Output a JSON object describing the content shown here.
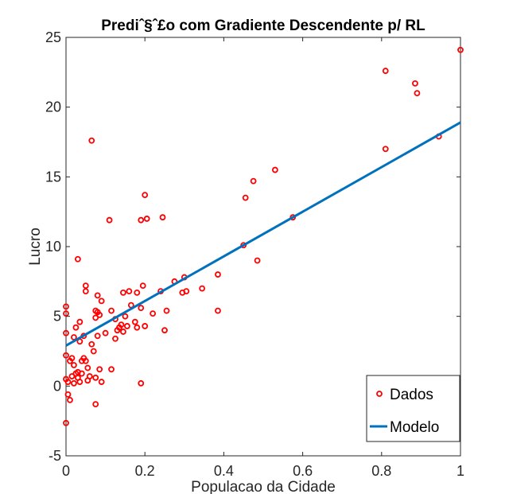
{
  "chart_data": {
    "type": "scatter",
    "title": "Prediˆ§ˆ£o com Gradiente Descendente p/ RL",
    "xlabel": "Populacao da Cidade",
    "ylabel": "Lucro",
    "xlim": [
      0,
      1
    ],
    "ylim": [
      -5,
      25
    ],
    "xticks": [
      "0",
      "0.2",
      "0.4",
      "0.6",
      "0.8",
      "1"
    ],
    "yticks": [
      "-5",
      "0",
      "5",
      "10",
      "15",
      "20",
      "25"
    ],
    "grid": false,
    "legend_position": "bottom-right",
    "series": [
      {
        "name": "Dados",
        "kind": "markers",
        "color": "#ff0000",
        "points": [
          [
            0.0,
            -2.65
          ],
          [
            0.0,
            0.5
          ],
          [
            0.0,
            2.2
          ],
          [
            0.0,
            3.8
          ],
          [
            0.0,
            5.2
          ],
          [
            0.0,
            5.7
          ],
          [
            0.005,
            0.3
          ],
          [
            0.005,
            -0.6
          ],
          [
            0.01,
            -1.0
          ],
          [
            0.01,
            1.8
          ],
          [
            0.015,
            2.0
          ],
          [
            0.015,
            0.7
          ],
          [
            0.02,
            3.5
          ],
          [
            0.02,
            1.5
          ],
          [
            0.02,
            0.2
          ],
          [
            0.025,
            0.9
          ],
          [
            0.025,
            4.2
          ],
          [
            0.03,
            9.1
          ],
          [
            0.03,
            0.6
          ],
          [
            0.03,
            1.0
          ],
          [
            0.035,
            3.2
          ],
          [
            0.035,
            4.6
          ],
          [
            0.035,
            0.3
          ],
          [
            0.04,
            1.8
          ],
          [
            0.04,
            0.9
          ],
          [
            0.045,
            2.0
          ],
          [
            0.045,
            3.6
          ],
          [
            0.05,
            1.8
          ],
          [
            0.05,
            7.2
          ],
          [
            0.05,
            6.8
          ],
          [
            0.055,
            1.3
          ],
          [
            0.055,
            0.4
          ],
          [
            0.06,
            0.7
          ],
          [
            0.065,
            17.6
          ],
          [
            0.065,
            3.0
          ],
          [
            0.07,
            2.5
          ],
          [
            0.075,
            4.9
          ],
          [
            0.075,
            5.4
          ],
          [
            0.075,
            0.6
          ],
          [
            0.075,
            -1.3
          ],
          [
            0.08,
            5.3
          ],
          [
            0.08,
            3.6
          ],
          [
            0.08,
            6.5
          ],
          [
            0.085,
            5.1
          ],
          [
            0.085,
            1.2
          ],
          [
            0.09,
            6.1
          ],
          [
            0.09,
            0.3
          ],
          [
            0.1,
            3.8
          ],
          [
            0.11,
            11.9
          ],
          [
            0.115,
            1.2
          ],
          [
            0.115,
            5.4
          ],
          [
            0.125,
            3.4
          ],
          [
            0.125,
            4.8
          ],
          [
            0.13,
            4.0
          ],
          [
            0.135,
            4.2
          ],
          [
            0.14,
            4.4
          ],
          [
            0.145,
            6.7
          ],
          [
            0.145,
            3.9
          ],
          [
            0.15,
            5.0
          ],
          [
            0.155,
            4.3
          ],
          [
            0.16,
            6.8
          ],
          [
            0.165,
            5.8
          ],
          [
            0.175,
            4.6
          ],
          [
            0.18,
            6.7
          ],
          [
            0.18,
            4.2
          ],
          [
            0.19,
            11.9
          ],
          [
            0.19,
            0.2
          ],
          [
            0.19,
            5.6
          ],
          [
            0.195,
            7.2
          ],
          [
            0.2,
            13.7
          ],
          [
            0.2,
            4.3
          ],
          [
            0.205,
            12.0
          ],
          [
            0.22,
            5.2
          ],
          [
            0.24,
            6.8
          ],
          [
            0.245,
            12.1
          ],
          [
            0.25,
            4.0
          ],
          [
            0.255,
            5.4
          ],
          [
            0.275,
            7.5
          ],
          [
            0.295,
            6.7
          ],
          [
            0.3,
            7.8
          ],
          [
            0.305,
            6.8
          ],
          [
            0.345,
            7.0
          ],
          [
            0.385,
            8.0
          ],
          [
            0.385,
            5.4
          ],
          [
            0.45,
            10.1
          ],
          [
            0.455,
            13.5
          ],
          [
            0.475,
            14.7
          ],
          [
            0.485,
            9.0
          ],
          [
            0.53,
            15.5
          ],
          [
            0.575,
            12.1
          ],
          [
            0.81,
            17.0
          ],
          [
            0.81,
            22.6
          ],
          [
            0.885,
            21.7
          ],
          [
            0.89,
            21.0
          ],
          [
            0.945,
            17.9
          ],
          [
            1.0,
            24.1
          ]
        ]
      },
      {
        "name": "Modelo",
        "kind": "line",
        "color": "#0072bd",
        "points": [
          [
            0.0,
            2.9
          ],
          [
            1.0,
            18.9
          ]
        ]
      }
    ]
  }
}
